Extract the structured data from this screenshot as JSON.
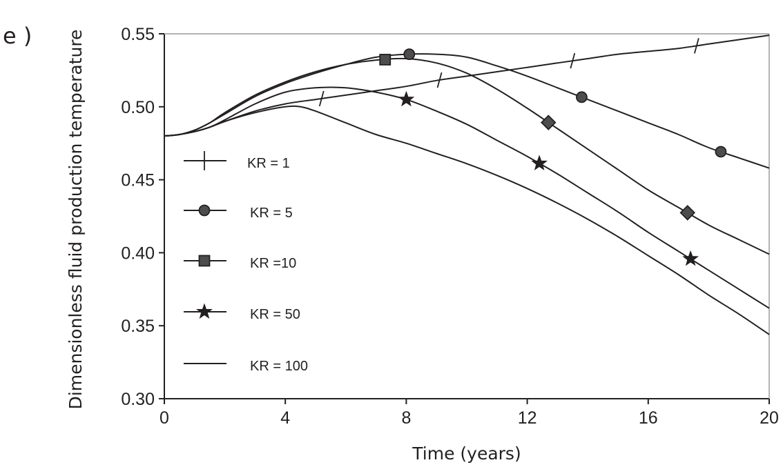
{
  "panel_label": "e )",
  "chart_data": {
    "type": "line",
    "xlabel": "Time (years)",
    "ylabel": "Dimensionless fluid production temperature",
    "xlim": [
      0,
      20
    ],
    "ylim": [
      0.3,
      0.55
    ],
    "x_ticks": [
      0,
      4,
      8,
      12,
      16,
      20
    ],
    "y_ticks": [
      0.3,
      0.35,
      0.4,
      0.45,
      0.5,
      0.55
    ],
    "x_tick_labels": [
      "0",
      "4",
      "8",
      "12",
      "16",
      "20"
    ],
    "y_tick_labels": [
      "0.30",
      "0.35",
      "0.40",
      "0.45",
      "0.50",
      "0.55"
    ],
    "grid": false,
    "legend_position": "left",
    "series": [
      {
        "name": "KR = 1",
        "marker": "plus",
        "x": [
          0,
          0.5,
          1,
          1.5,
          2,
          3,
          4,
          5,
          6,
          7,
          8,
          9,
          10,
          11,
          12,
          13,
          14,
          15,
          16,
          17,
          18,
          19,
          20
        ],
        "y": [
          0.48,
          0.481,
          0.483,
          0.486,
          0.49,
          0.497,
          0.502,
          0.505,
          0.508,
          0.511,
          0.514,
          0.518,
          0.521,
          0.524,
          0.527,
          0.53,
          0.533,
          0.536,
          0.538,
          0.54,
          0.543,
          0.546,
          0.549
        ],
        "marker_x": [
          5.2,
          9.1,
          13.5,
          17.6
        ]
      },
      {
        "name": "KR = 5",
        "marker": "circle",
        "x": [
          0,
          0.5,
          1,
          1.5,
          2,
          3,
          4,
          5,
          6,
          7,
          8,
          9,
          10,
          11,
          12,
          13,
          14,
          15,
          16,
          17,
          18,
          19,
          20
        ],
        "y": [
          0.48,
          0.481,
          0.484,
          0.489,
          0.495,
          0.507,
          0.516,
          0.523,
          0.529,
          0.534,
          0.536,
          0.536,
          0.534,
          0.528,
          0.521,
          0.513,
          0.505,
          0.497,
          0.489,
          0.481,
          0.472,
          0.465,
          0.458
        ],
        "marker_x": [
          8.1,
          13.8,
          18.4
        ]
      },
      {
        "name": "KR =10",
        "marker": "square",
        "x": [
          0,
          0.5,
          1,
          1.5,
          2,
          3,
          4,
          5,
          6,
          7,
          8,
          9,
          10,
          11,
          12,
          13,
          14,
          15,
          16,
          17,
          18,
          19,
          20
        ],
        "y": [
          0.48,
          0.481,
          0.484,
          0.489,
          0.496,
          0.508,
          0.517,
          0.524,
          0.529,
          0.532,
          0.533,
          0.53,
          0.523,
          0.512,
          0.499,
          0.485,
          0.471,
          0.457,
          0.443,
          0.431,
          0.419,
          0.409,
          0.399
        ],
        "marker_x": [
          7.3,
          12.7,
          17.3
        ]
      },
      {
        "name": "KR = 50",
        "marker": "star",
        "x": [
          0,
          0.5,
          1,
          1.5,
          2,
          3,
          4,
          5,
          6,
          7,
          8,
          9,
          10,
          11,
          12,
          13,
          14,
          15,
          16,
          17,
          18,
          19,
          20
        ],
        "y": [
          0.48,
          0.481,
          0.483,
          0.486,
          0.491,
          0.502,
          0.51,
          0.513,
          0.513,
          0.51,
          0.505,
          0.497,
          0.488,
          0.477,
          0.466,
          0.454,
          0.441,
          0.428,
          0.414,
          0.401,
          0.388,
          0.375,
          0.362
        ],
        "marker_x": [
          8.0,
          12.4,
          17.4
        ]
      },
      {
        "name": "KR = 100",
        "marker": "none",
        "x": [
          0,
          0.5,
          1,
          1.5,
          2,
          3,
          4,
          4.5,
          5,
          6,
          7,
          8,
          9,
          10,
          11,
          12,
          13,
          14,
          15,
          16,
          17,
          18,
          19,
          20
        ],
        "y": [
          0.48,
          0.481,
          0.483,
          0.486,
          0.49,
          0.496,
          0.5,
          0.5,
          0.497,
          0.489,
          0.481,
          0.475,
          0.468,
          0.461,
          0.453,
          0.444,
          0.434,
          0.423,
          0.411,
          0.398,
          0.385,
          0.371,
          0.358,
          0.344
        ],
        "marker_x": []
      }
    ]
  }
}
